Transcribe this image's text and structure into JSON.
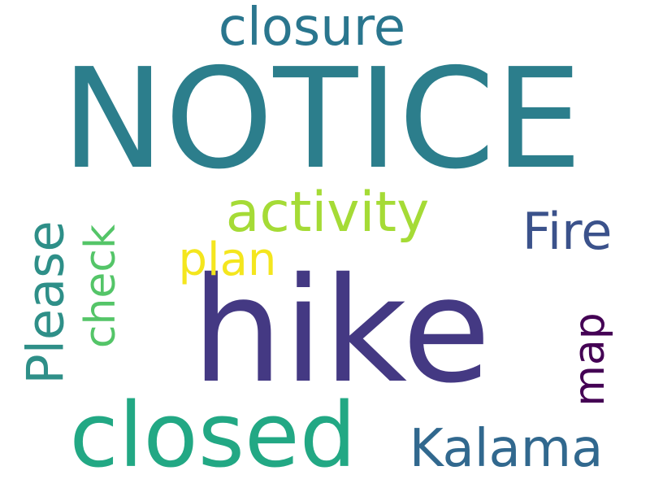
{
  "words": [
    {
      "text": "NOTICE",
      "color": "#2c7e8c"
    },
    {
      "text": "hike",
      "color": "#443983"
    },
    {
      "text": "closed",
      "color": "#22a884"
    },
    {
      "text": "activity",
      "color": "#a5db36"
    },
    {
      "text": "closure",
      "color": "#2a768e"
    },
    {
      "text": "Fire",
      "color": "#3b528b"
    },
    {
      "text": "Please",
      "color": "#2e8f88"
    },
    {
      "text": "check",
      "color": "#54c568"
    },
    {
      "text": "Kalama",
      "color": "#31688e"
    },
    {
      "text": "plan",
      "color": "#f4e61e"
    },
    {
      "text": "map",
      "color": "#440154"
    }
  ]
}
